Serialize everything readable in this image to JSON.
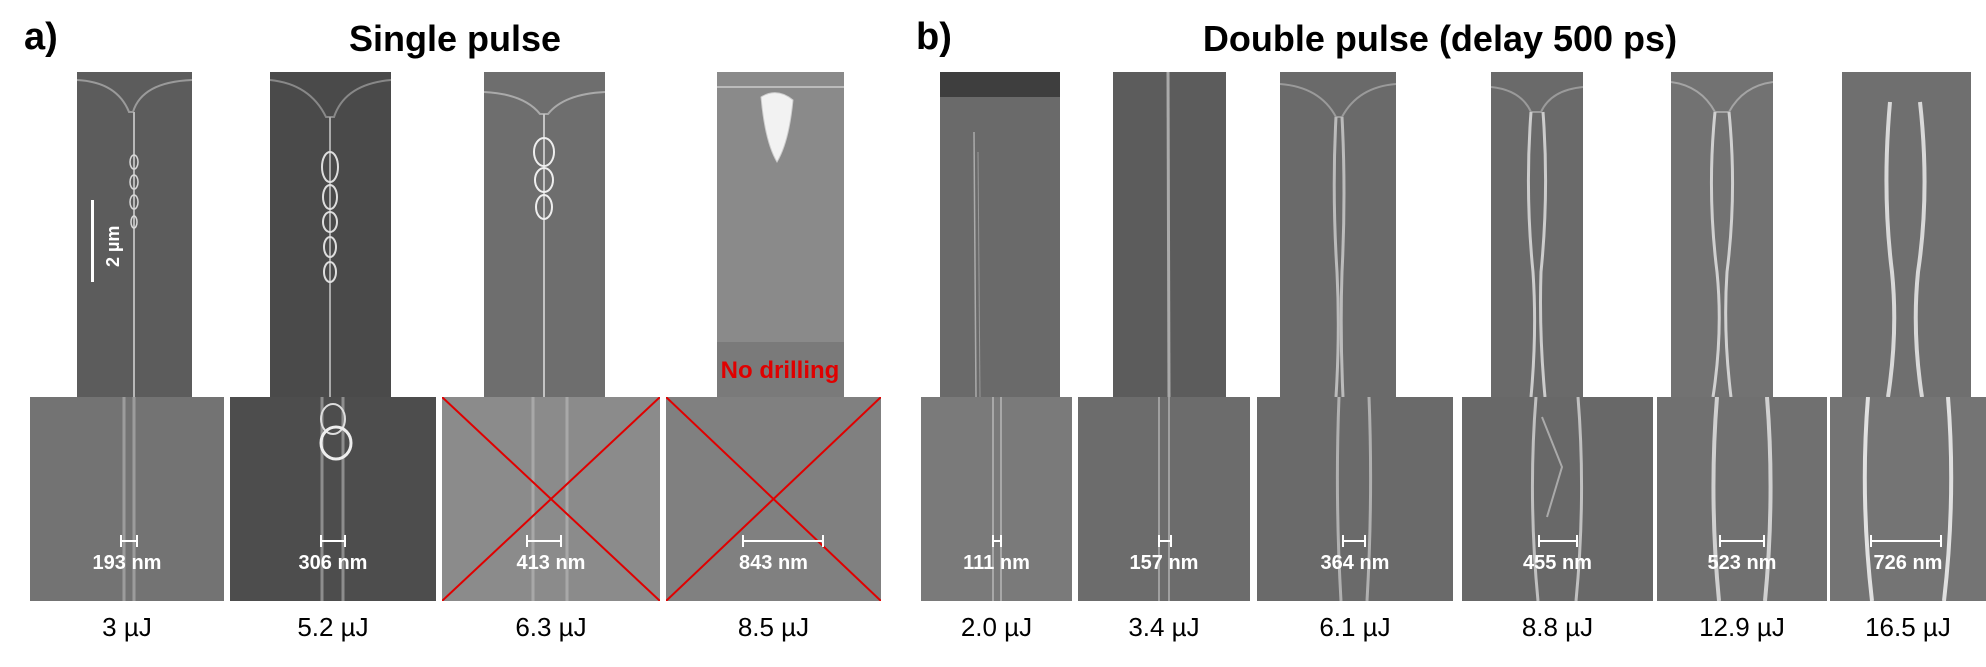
{
  "panels": {
    "a": {
      "label": "a)",
      "title": "Single pulse"
    },
    "b": {
      "label": "b)",
      "title": "Double pulse (delay 500 ps)"
    }
  },
  "scale_bar": "2 µm",
  "no_drilling": "No drilling",
  "single": [
    {
      "energy": "3 µJ",
      "diameter": "193 nm"
    },
    {
      "energy": "5.2 µJ",
      "diameter": "306 nm"
    },
    {
      "energy": "6.3 µJ",
      "diameter": "413 nm"
    },
    {
      "energy": "8.5 µJ",
      "diameter": "843 nm"
    }
  ],
  "double": [
    {
      "energy": "2.0 µJ",
      "diameter": "111 nm"
    },
    {
      "energy": "3.4 µJ",
      "diameter": "157 nm"
    },
    {
      "energy": "6.1 µJ",
      "diameter": "364 nm"
    },
    {
      "energy": "8.8 µJ",
      "diameter": "455 nm"
    },
    {
      "energy": "12.9 µJ",
      "diameter": "523 nm"
    },
    {
      "energy": "16.5 µJ",
      "diameter": "726 nm"
    }
  ],
  "colors": {
    "cross": "#e00000",
    "no_drilling": "#e00000"
  }
}
